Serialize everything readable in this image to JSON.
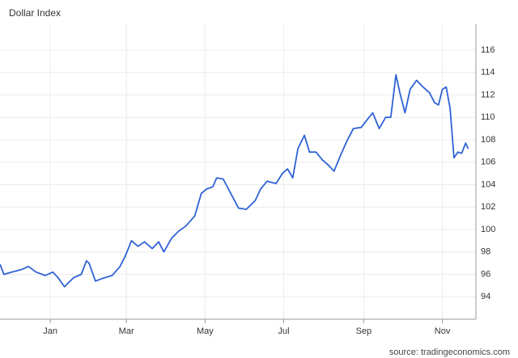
{
  "chart_data": {
    "type": "line",
    "title": "Dollar Index",
    "source": "source: tradingeconomics.com",
    "x": [
      -39,
      -36,
      -30,
      -23,
      -17,
      -11,
      -4,
      2,
      6,
      11,
      18,
      24,
      28,
      30,
      35,
      42,
      48,
      54,
      58,
      63,
      68,
      73,
      79,
      84,
      88,
      94,
      99,
      105,
      112,
      117,
      121,
      126,
      129,
      134,
      140,
      146,
      152,
      159,
      163,
      168,
      175,
      180,
      184,
      188,
      192,
      197,
      201,
      206,
      211,
      216,
      220,
      225,
      230,
      235,
      241,
      245,
      250,
      255,
      260,
      264,
      268,
      271,
      275,
      279,
      284,
      289,
      294,
      298,
      301,
      304,
      307,
      310,
      313,
      316,
      319,
      322,
      324
    ],
    "series": [
      {
        "name": "Dollar Index",
        "color": "#2f62d6",
        "values": [
          96.9,
          96.0,
          96.2,
          96.4,
          96.7,
          96.2,
          95.9,
          96.2,
          95.7,
          94.9,
          95.7,
          96.0,
          97.2,
          97.0,
          95.4,
          95.7,
          95.9,
          96.7,
          97.6,
          99.0,
          98.5,
          98.9,
          98.3,
          98.9,
          98.0,
          99.2,
          99.8,
          100.3,
          101.2,
          103.2,
          103.6,
          103.8,
          104.6,
          104.5,
          103.2,
          101.9,
          101.8,
          102.6,
          103.6,
          104.3,
          104.1,
          105.0,
          105.4,
          104.6,
          107.2,
          108.4,
          106.9,
          106.9,
          106.2,
          105.7,
          105.2,
          106.6,
          107.9,
          109.0,
          109.1,
          109.7,
          110.4,
          109.0,
          110.0,
          110.0,
          113.8,
          112.2,
          110.4,
          112.5,
          113.3,
          112.7,
          112.2,
          111.3,
          111.1,
          112.5,
          112.7,
          110.8,
          106.4,
          106.9,
          106.8,
          107.7,
          107.2
        ]
      }
    ],
    "xlim": [
      -39,
      330
    ],
    "xticks": [
      {
        "value": 0,
        "label": "Jan"
      },
      {
        "value": 59,
        "label": "Mar"
      },
      {
        "value": 120,
        "label": "May"
      },
      {
        "value": 181,
        "label": "Jul"
      },
      {
        "value": 243,
        "label": "Sep"
      },
      {
        "value": 304,
        "label": "Nov"
      }
    ],
    "ylim": [
      92,
      118.3
    ],
    "yticks": [
      94,
      96,
      98,
      100,
      102,
      104,
      106,
      108,
      110,
      112,
      114,
      116
    ],
    "grid": true
  }
}
